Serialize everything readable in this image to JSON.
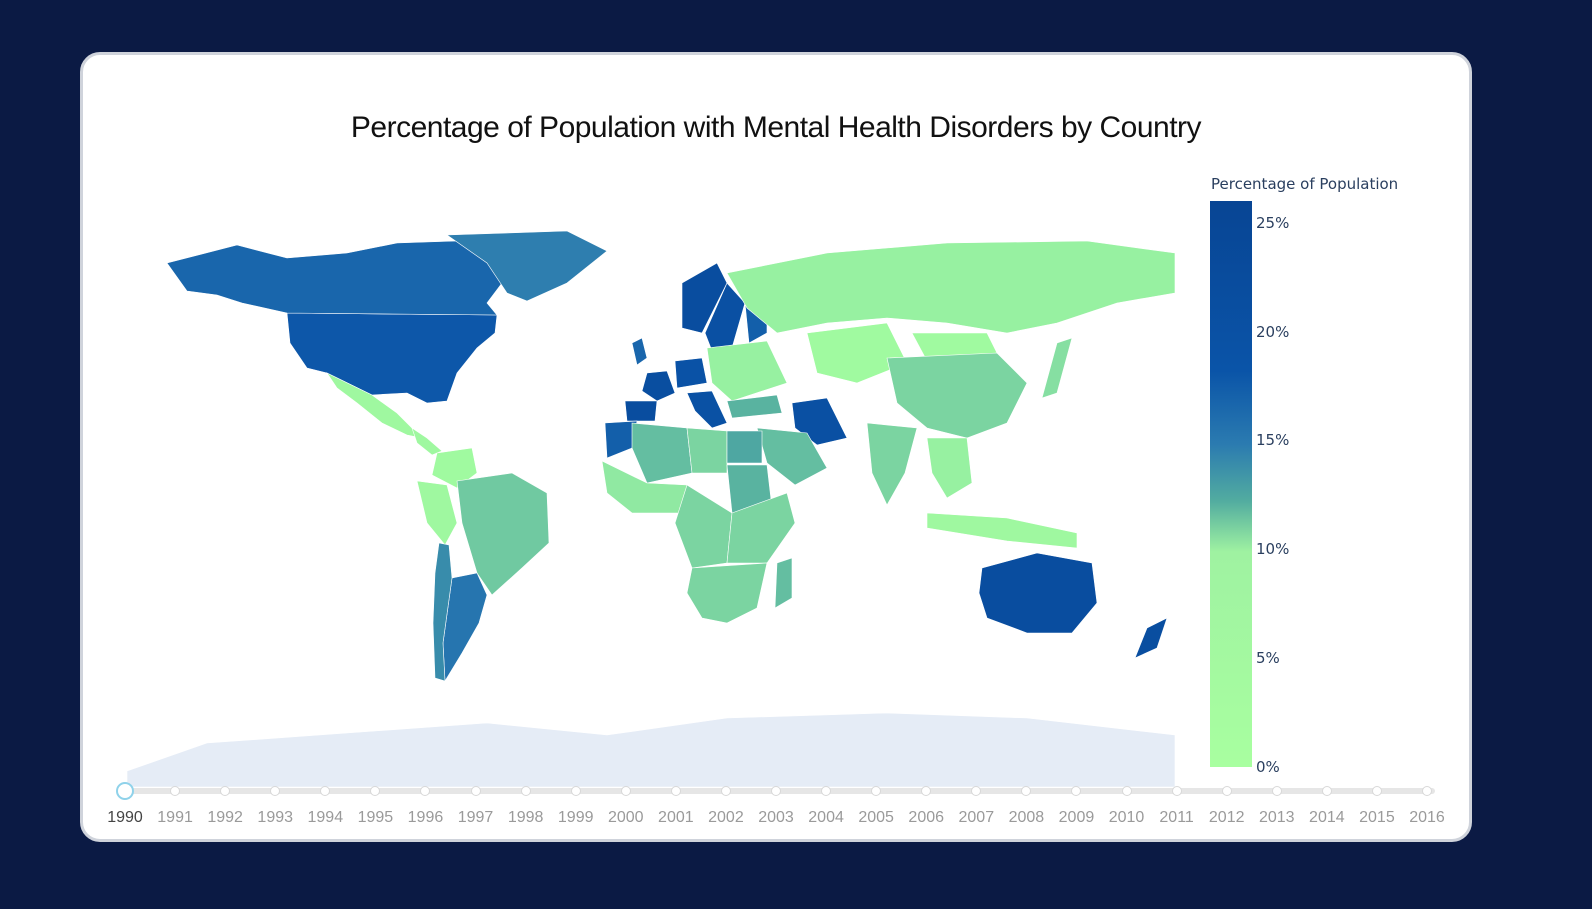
{
  "chart_data": {
    "type": "choropleth",
    "title": "Percentage of Population with Mental Health Disorders by Country",
    "colorbar": {
      "title": "Percentage of Population",
      "tick_labels": [
        "0%",
        "5%",
        "10%",
        "15%",
        "20%",
        "25%"
      ],
      "range": [
        0,
        26
      ]
    },
    "frame": "1990",
    "regions": [
      {
        "name": "United States",
        "value": 18.5
      },
      {
        "name": "Canada",
        "value": 17.5
      },
      {
        "name": "Greenland",
        "value": 16.0
      },
      {
        "name": "Mexico",
        "value": 10.5
      },
      {
        "name": "Central America",
        "value": 10.5
      },
      {
        "name": "Colombia",
        "value": 10.2
      },
      {
        "name": "Peru",
        "value": 10.5
      },
      {
        "name": "Brazil",
        "value": 13.0
      },
      {
        "name": "Argentina",
        "value": 16.5
      },
      {
        "name": "Chile",
        "value": 15.5
      },
      {
        "name": "United Kingdom",
        "value": 17.5
      },
      {
        "name": "France",
        "value": 21.5
      },
      {
        "name": "Spain",
        "value": 22.0
      },
      {
        "name": "Norway",
        "value": 22.0
      },
      {
        "name": "Sweden",
        "value": 20.5
      },
      {
        "name": "Finland",
        "value": 18.0
      },
      {
        "name": "Germany",
        "value": 19.5
      },
      {
        "name": "Italy",
        "value": 20.0
      },
      {
        "name": "Eastern Europe",
        "value": 11.0
      },
      {
        "name": "Russia",
        "value": 11.0
      },
      {
        "name": "Kazakhstan",
        "value": 10.0
      },
      {
        "name": "Mongolia",
        "value": 10.0
      },
      {
        "name": "China",
        "value": 12.5
      },
      {
        "name": "Japan",
        "value": 12.0
      },
      {
        "name": "Iran",
        "value": 20.5
      },
      {
        "name": "Turkey",
        "value": 14.0
      },
      {
        "name": "Saudi Arabia",
        "value": 13.5
      },
      {
        "name": "India",
        "value": 12.5
      },
      {
        "name": "Southeast Asia",
        "value": 11.0
      },
      {
        "name": "Indonesia",
        "value": 10.5
      },
      {
        "name": "Morocco",
        "value": 18.0
      },
      {
        "name": "Algeria",
        "value": 13.5
      },
      {
        "name": "Libya",
        "value": 12.5
      },
      {
        "name": "Egypt",
        "value": 14.5
      },
      {
        "name": "Sudan",
        "value": 14.0
      },
      {
        "name": "West Africa",
        "value": 11.5
      },
      {
        "name": "Central Africa",
        "value": 12.5
      },
      {
        "name": "East Africa",
        "value": 12.5
      },
      {
        "name": "Southern Africa",
        "value": 12.5
      },
      {
        "name": "Madagascar",
        "value": 13.5
      },
      {
        "name": "Australia",
        "value": 22.0
      },
      {
        "name": "New Zealand",
        "value": 21.5
      },
      {
        "name": "Antarctica",
        "value": null
      }
    ]
  },
  "slider": {
    "years": [
      "1990",
      "1991",
      "1992",
      "1993",
      "1994",
      "1995",
      "1996",
      "1997",
      "1998",
      "1999",
      "2000",
      "2001",
      "2002",
      "2003",
      "2004",
      "2005",
      "2006",
      "2007",
      "2008",
      "2009",
      "2010",
      "2011",
      "2012",
      "2013",
      "2014",
      "2015",
      "2016"
    ],
    "active": "1990"
  },
  "colors": {
    "background": "#0b1a44",
    "no_data": "#e5ecf6",
    "scale": [
      "#a8ffa0",
      "#8de6a2",
      "#52aca0",
      "#2b7bb0",
      "#0a54a8",
      "#084594"
    ]
  }
}
